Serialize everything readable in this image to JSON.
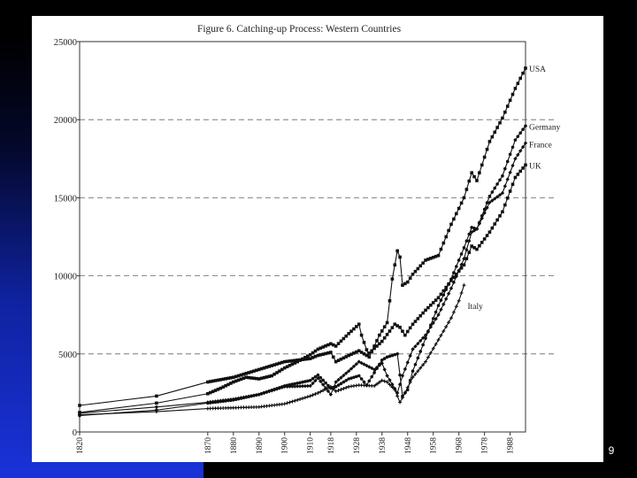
{
  "slide": {
    "page_number": "9",
    "colors": {
      "background": "#000000",
      "gradient_blue": "#1a32d8",
      "panel": "#ffffff"
    }
  },
  "chart_data": {
    "type": "line",
    "title": "Figure 6. Catching-up Process: Western Countries",
    "xlabel": "",
    "ylabel": "",
    "xlim": [
      1820,
      1994
    ],
    "ylim": [
      0,
      25000
    ],
    "y_ticks": [
      0,
      5000,
      10000,
      15000,
      20000,
      25000
    ],
    "x_ticks": [
      1820,
      1870,
      1880,
      1890,
      1900,
      1910,
      1918,
      1928,
      1938,
      1948,
      1958,
      1968,
      1978,
      1988
    ],
    "gridlines": "dashed-horizontal",
    "legend": "direct labels at line ends",
    "series": [
      {
        "name": "USA",
        "x": [
          1820,
          1850,
          1870,
          1875,
          1880,
          1885,
          1890,
          1895,
          1900,
          1905,
          1910,
          1913,
          1918,
          1920,
          1925,
          1929,
          1930,
          1933,
          1937,
          1940,
          1942,
          1944,
          1945,
          1946,
          1948,
          1950,
          1955,
          1960,
          1965,
          1970,
          1973,
          1975,
          1980,
          1985,
          1990,
          1994
        ],
        "y": [
          1250,
          1850,
          2450,
          2800,
          3200,
          3500,
          3400,
          3600,
          4100,
          4500,
          4950,
          5300,
          5650,
          5500,
          6300,
          6900,
          6200,
          4800,
          6200,
          7000,
          9800,
          11600,
          11200,
          9400,
          9600,
          10100,
          11000,
          11300,
          13300,
          15000,
          16600,
          16100,
          18600,
          20100,
          22000,
          23300
        ]
      },
      {
        "name": "Germany",
        "x": [
          1820,
          1850,
          1870,
          1880,
          1890,
          1900,
          1910,
          1913,
          1918,
          1920,
          1925,
          1929,
          1932,
          1938,
          1940,
          1944,
          1946,
          1948,
          1950,
          1955,
          1960,
          1965,
          1970,
          1973,
          1975,
          1980,
          1985,
          1990,
          1994
        ],
        "y": [
          1050,
          1400,
          1850,
          2050,
          2400,
          2950,
          3300,
          3650,
          2800,
          2900,
          3400,
          3600,
          3000,
          4600,
          4800,
          5000,
          2300,
          2700,
          3900,
          6000,
          8100,
          9800,
          11800,
          13100,
          13000,
          15100,
          16400,
          18700,
          19600
        ]
      },
      {
        "name": "France",
        "x": [
          1820,
          1850,
          1870,
          1880,
          1890,
          1900,
          1910,
          1913,
          1918,
          1920,
          1925,
          1929,
          1935,
          1938,
          1940,
          1944,
          1946,
          1950,
          1955,
          1960,
          1965,
          1970,
          1973,
          1975,
          1980,
          1985,
          1990,
          1994
        ],
        "y": [
          1200,
          1600,
          1900,
          2100,
          2400,
          2900,
          2950,
          3450,
          2400,
          3200,
          3900,
          4500,
          4000,
          4400,
          3600,
          2500,
          3600,
          5300,
          6200,
          7500,
          9200,
          11100,
          12800,
          13000,
          14700,
          15300,
          17500,
          18500
        ]
      },
      {
        "name": "UK",
        "x": [
          1820,
          1850,
          1870,
          1880,
          1890,
          1900,
          1910,
          1913,
          1918,
          1920,
          1925,
          1929,
          1932,
          1938,
          1943,
          1945,
          1947,
          1950,
          1955,
          1960,
          1965,
          1970,
          1973,
          1975,
          1980,
          1985,
          1990,
          1994
        ],
        "y": [
          1700,
          2300,
          3200,
          3500,
          4000,
          4500,
          4700,
          4900,
          5100,
          4500,
          4900,
          5200,
          4900,
          5800,
          6900,
          6700,
          6200,
          6900,
          7800,
          8600,
          9700,
          10700,
          11900,
          11700,
          12800,
          14100,
          16300,
          17100
        ]
      },
      {
        "name": "Italy",
        "x": [
          1820,
          1850,
          1870,
          1880,
          1890,
          1900,
          1910,
          1913,
          1918,
          1920,
          1925,
          1929,
          1935,
          1938,
          1940,
          1943,
          1945,
          1946,
          1950,
          1955,
          1960,
          1965,
          1968,
          1970
        ],
        "y": [
          1100,
          1300,
          1500,
          1550,
          1600,
          1800,
          2300,
          2500,
          2900,
          2600,
          2900,
          3000,
          2950,
          3300,
          3200,
          2700,
          1900,
          2200,
          3500,
          4500,
          5900,
          7300,
          8400,
          9400
        ]
      }
    ]
  }
}
